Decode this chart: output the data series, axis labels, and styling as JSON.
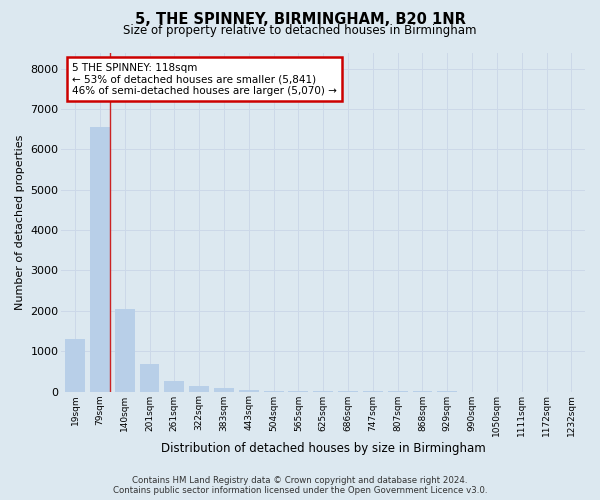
{
  "title": "5, THE SPINNEY, BIRMINGHAM, B20 1NR",
  "subtitle": "Size of property relative to detached houses in Birmingham",
  "xlabel": "Distribution of detached houses by size in Birmingham",
  "ylabel": "Number of detached properties",
  "categories": [
    "19sqm",
    "79sqm",
    "140sqm",
    "201sqm",
    "261sqm",
    "322sqm",
    "383sqm",
    "443sqm",
    "504sqm",
    "565sqm",
    "625sqm",
    "686sqm",
    "747sqm",
    "807sqm",
    "868sqm",
    "929sqm",
    "990sqm",
    "1050sqm",
    "1111sqm",
    "1172sqm",
    "1232sqm"
  ],
  "values": [
    1300,
    6550,
    2050,
    680,
    250,
    140,
    80,
    50,
    20,
    10,
    8,
    6,
    4,
    3,
    2,
    2,
    1,
    1,
    1,
    1,
    1
  ],
  "bar_color": "#b8cfe8",
  "vline_color": "#cc2222",
  "vline_x": 1.42,
  "annotation_box_text": "5 THE SPINNEY: 118sqm\n← 53% of detached houses are smaller (5,841)\n46% of semi-detached houses are larger (5,070) →",
  "annotation_box_color": "#cc0000",
  "annotation_box_bg": "#ffffff",
  "footer_line1": "Contains HM Land Registry data © Crown copyright and database right 2024.",
  "footer_line2": "Contains public sector information licensed under the Open Government Licence v3.0.",
  "ylim": [
    0,
    8400
  ],
  "yticks": [
    0,
    1000,
    2000,
    3000,
    4000,
    5000,
    6000,
    7000,
    8000
  ],
  "grid_color": "#ccd8e8",
  "background_color": "#dce8f0"
}
